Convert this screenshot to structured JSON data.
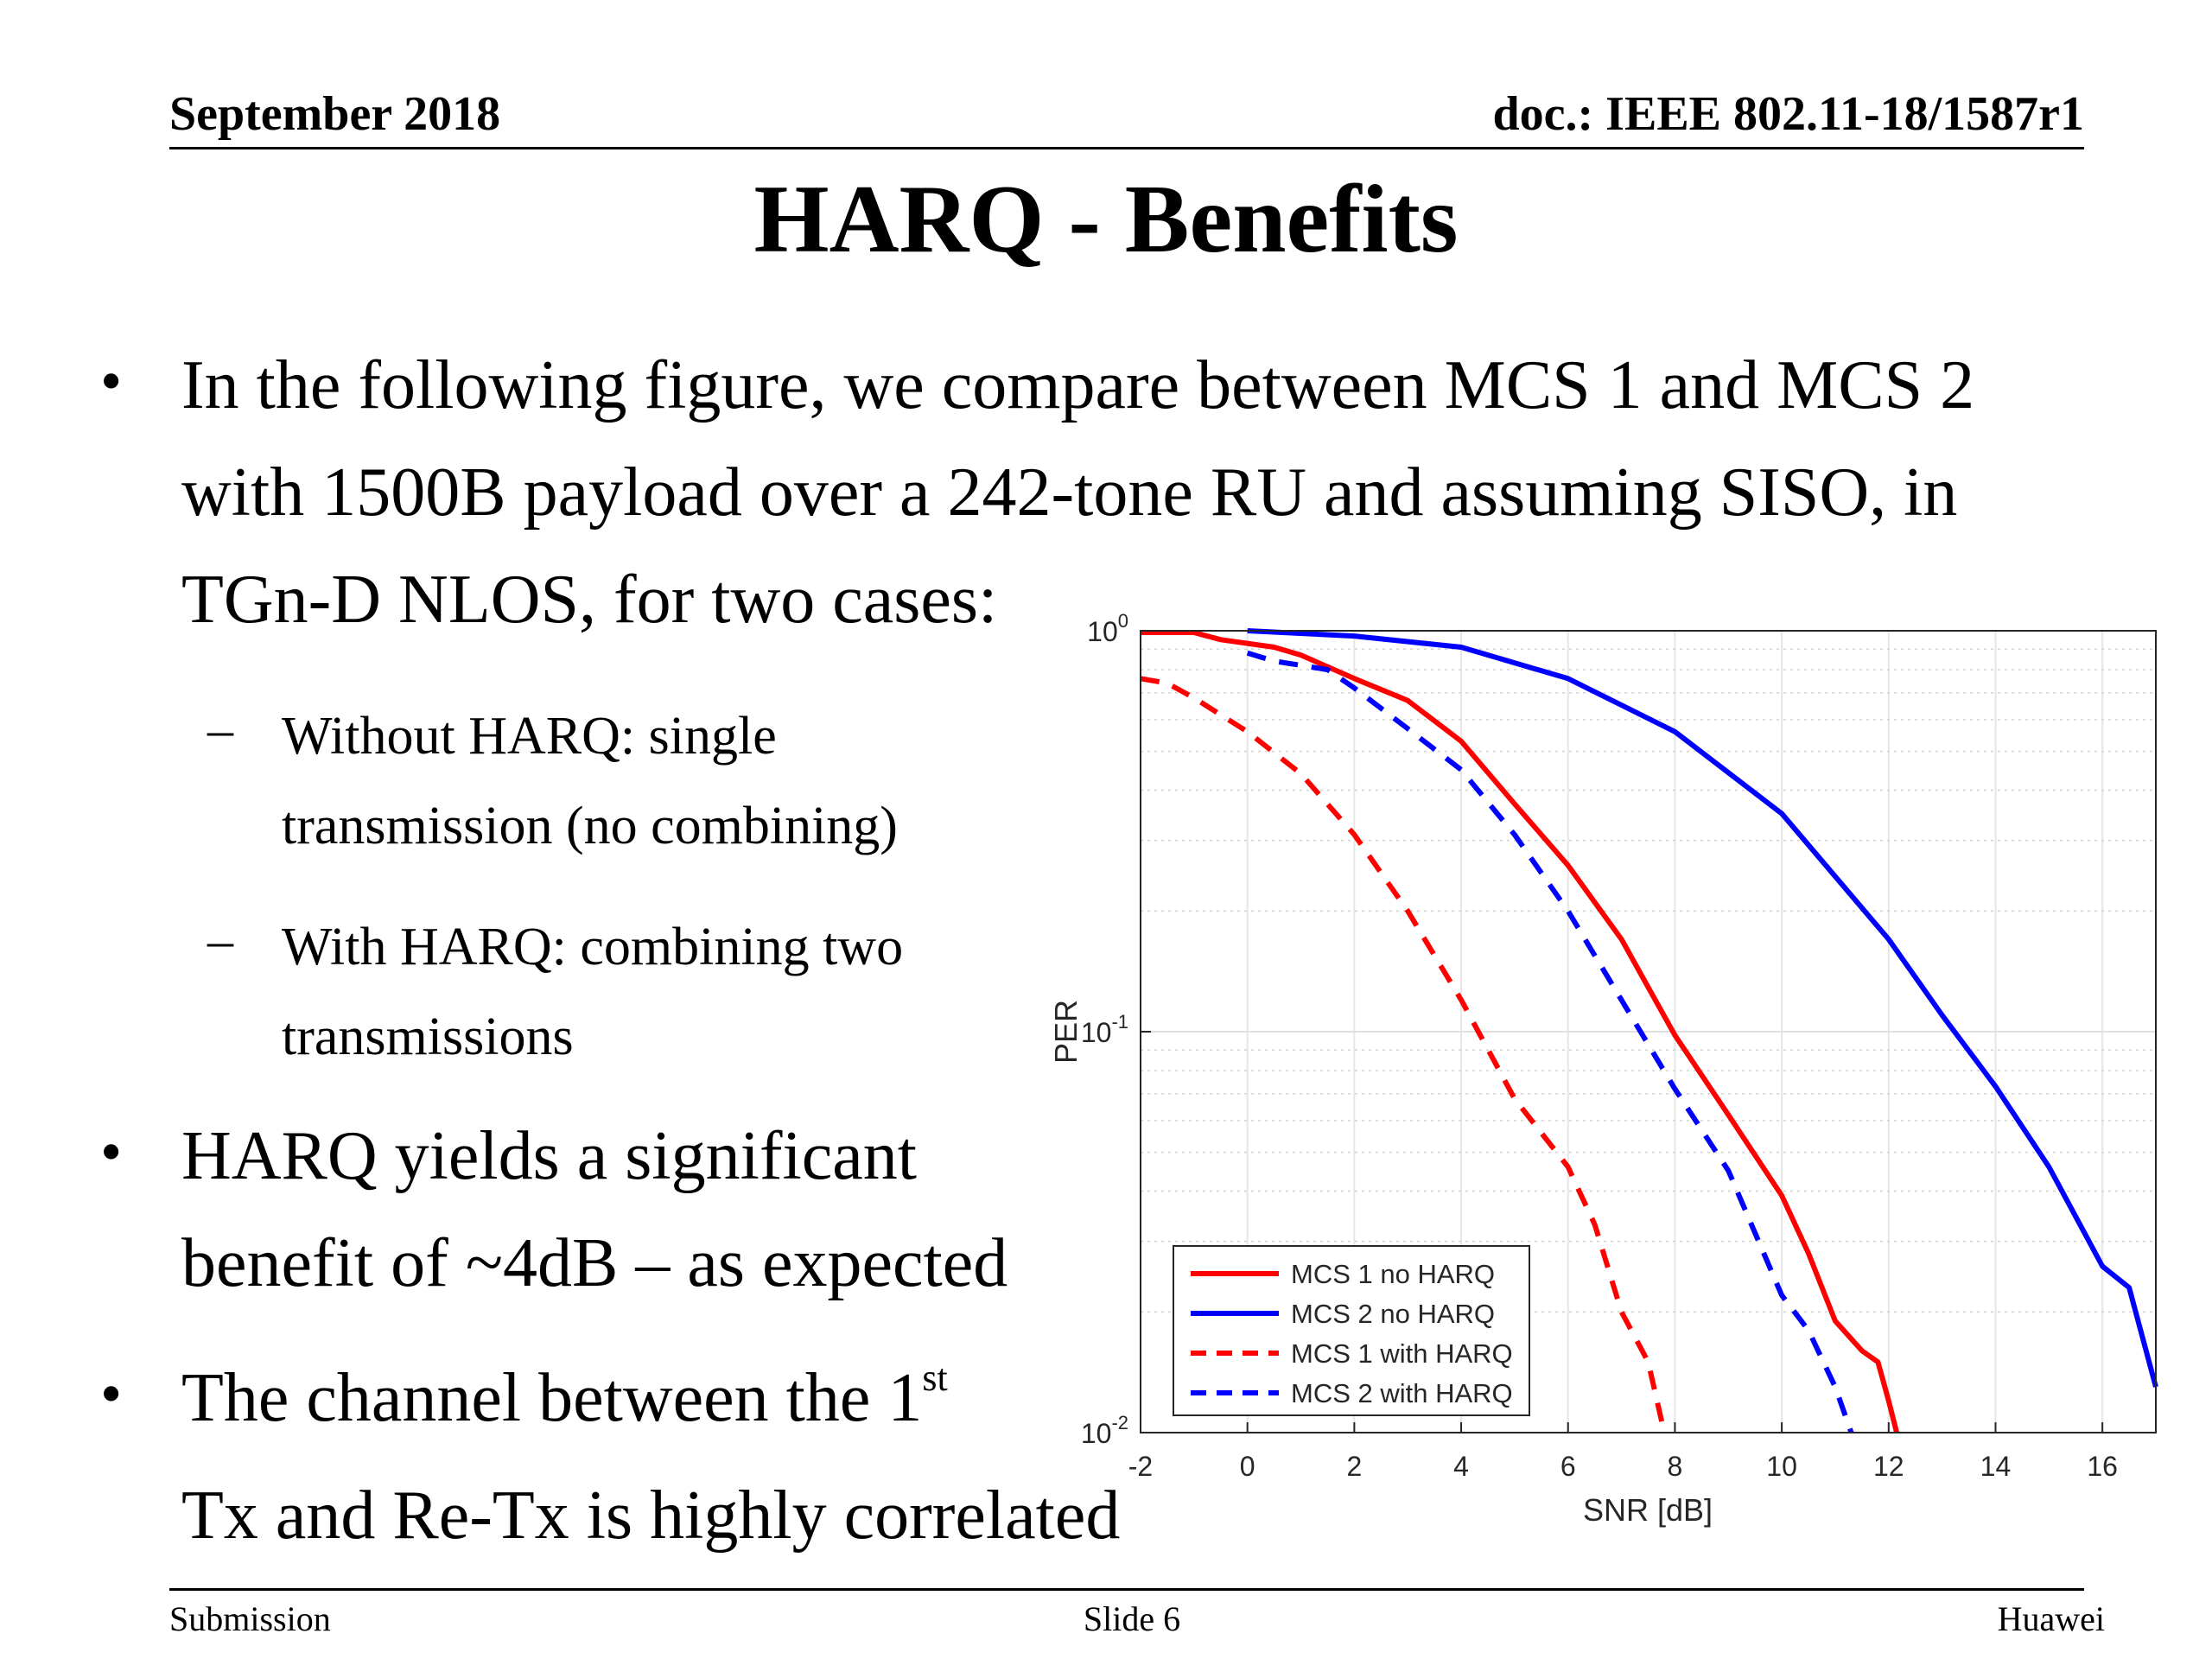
{
  "header": {
    "date": "September 2018",
    "doc": "doc.: IEEE 802.11-18/1587r1"
  },
  "title": "HARQ - Benefits",
  "bullets": {
    "b1": [
      "In the following figure, we compare between MCS 1 and MCS 2",
      "with 1500B payload over a 242-tone RU and assuming SISO, in",
      "TGn-D NLOS, for two cases:"
    ],
    "sub1": [
      "Without HARQ: single",
      "transmission (no combining)"
    ],
    "sub2": [
      "With HARQ: combining two",
      "transmissions"
    ],
    "b2": [
      "HARQ yields a significant",
      "benefit of ~4dB – as expected"
    ],
    "b3_line1": "The channel between the 1",
    "b3_sup": "st",
    "b3_line2": "Tx and Re-Tx is highly correlated"
  },
  "footer": {
    "left": "Submission",
    "center": "Slide 6",
    "right": "Huawei"
  },
  "chart_data": {
    "type": "line",
    "xlabel": "SNR [dB]",
    "ylabel": "PER",
    "yscale": "log",
    "xlim": [
      -2,
      17
    ],
    "ylim": [
      0.01,
      1
    ],
    "xticks": [
      "-2",
      "0",
      "2",
      "4",
      "6",
      "8",
      "10",
      "12",
      "14",
      "16"
    ],
    "yticks": [
      {
        "base": "10",
        "exp": "0"
      },
      {
        "base": "10",
        "exp": "-1"
      },
      {
        "base": "10",
        "exp": "-2"
      }
    ],
    "grid": true,
    "legend_position": "bottom-left",
    "series": [
      {
        "name": "MCS 1 no HARQ",
        "color": "#ff0000",
        "dash": "solid",
        "points": [
          [
            -2,
            0.99
          ],
          [
            -1.5,
            0.99
          ],
          [
            -1,
            0.99
          ],
          [
            -0.5,
            0.95
          ],
          [
            0,
            0.93
          ],
          [
            0.5,
            0.91
          ],
          [
            1,
            0.87
          ],
          [
            2,
            0.76
          ],
          [
            3,
            0.67
          ],
          [
            4,
            0.53
          ],
          [
            5,
            0.37
          ],
          [
            6,
            0.26
          ],
          [
            7,
            0.17
          ],
          [
            8,
            0.098
          ],
          [
            9,
            0.062
          ],
          [
            10,
            0.039
          ],
          [
            10.5,
            0.028
          ],
          [
            11,
            0.019
          ],
          [
            11.5,
            0.016
          ],
          [
            11.8,
            0.015
          ],
          [
            12,
            0.012
          ],
          [
            12.15,
            0.01
          ]
        ]
      },
      {
        "name": "MCS 2 no HARQ",
        "color": "#0000ff",
        "dash": "solid",
        "points": [
          [
            0,
            1.0
          ],
          [
            2,
            0.97
          ],
          [
            4,
            0.91
          ],
          [
            6,
            0.76
          ],
          [
            8,
            0.56
          ],
          [
            10,
            0.35
          ],
          [
            12,
            0.17
          ],
          [
            13,
            0.11
          ],
          [
            14,
            0.073
          ],
          [
            15,
            0.046
          ],
          [
            16,
            0.026
          ],
          [
            16.5,
            0.023
          ],
          [
            17,
            0.013
          ]
        ]
      },
      {
        "name": "MCS 1 with HARQ",
        "color": "#ff0000",
        "dash": "dashed",
        "points": [
          [
            -2,
            0.76
          ],
          [
            -1.5,
            0.74
          ],
          [
            -1,
            0.68
          ],
          [
            0,
            0.56
          ],
          [
            1,
            0.44
          ],
          [
            2,
            0.31
          ],
          [
            3,
            0.2
          ],
          [
            4,
            0.12
          ],
          [
            5,
            0.068
          ],
          [
            6,
            0.046
          ],
          [
            6.5,
            0.033
          ],
          [
            7,
            0.02
          ],
          [
            7.5,
            0.015
          ],
          [
            7.8,
            0.01
          ]
        ]
      },
      {
        "name": "MCS 2 with HARQ",
        "color": "#0000ff",
        "dash": "dashed",
        "points": [
          [
            0,
            0.88
          ],
          [
            0.5,
            0.84
          ],
          [
            1,
            0.82
          ],
          [
            1.5,
            0.8
          ],
          [
            2,
            0.72
          ],
          [
            3,
            0.57
          ],
          [
            4,
            0.45
          ],
          [
            5,
            0.31
          ],
          [
            6,
            0.2
          ],
          [
            7,
            0.12
          ],
          [
            8,
            0.072
          ],
          [
            9,
            0.045
          ],
          [
            10,
            0.022
          ],
          [
            10.5,
            0.018
          ],
          [
            11,
            0.013
          ],
          [
            11.3,
            0.01
          ]
        ]
      }
    ]
  }
}
